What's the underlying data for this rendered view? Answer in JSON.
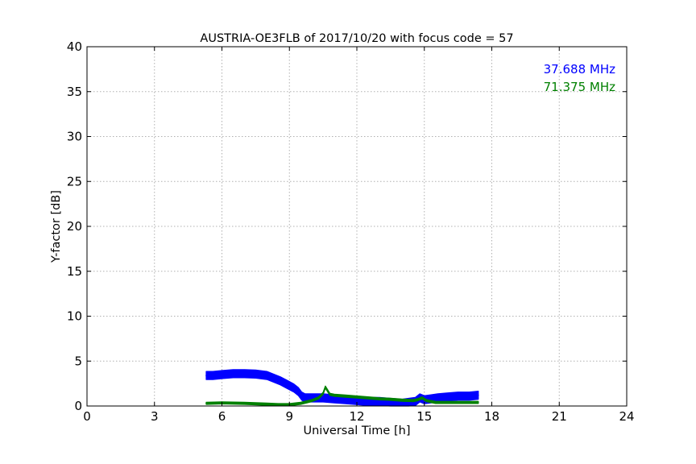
{
  "chart_data": {
    "type": "line",
    "title": "AUSTRIA-OE3FLB of 2017/10/20 with focus code = 57",
    "xlabel": "Universal Time [h]",
    "ylabel": "Y-factor [dB]",
    "xlim": [
      0,
      24
    ],
    "ylim": [
      0,
      40
    ],
    "xticks": [
      0,
      3,
      6,
      9,
      12,
      15,
      18,
      21,
      24
    ],
    "yticks": [
      0,
      5,
      10,
      15,
      20,
      25,
      30,
      35,
      40
    ],
    "grid": true,
    "legend_placement": "top-right",
    "series": [
      {
        "name": "37.688 MHz",
        "color": "#0000ff",
        "band": 0.45,
        "x": [
          5.3,
          5.6,
          6.0,
          6.5,
          7.0,
          7.5,
          8.0,
          8.3,
          8.6,
          8.9,
          9.2,
          9.4,
          9.55,
          9.7,
          10.0,
          10.5,
          11.0,
          11.5,
          12.0,
          12.5,
          13.0,
          13.5,
          14.0,
          14.3,
          14.6,
          14.8,
          15.0,
          15.3,
          15.6,
          16.0,
          16.5,
          17.0,
          17.4
        ],
        "y": [
          3.4,
          3.4,
          3.5,
          3.6,
          3.6,
          3.55,
          3.4,
          3.1,
          2.8,
          2.4,
          2.0,
          1.6,
          1.1,
          0.9,
          0.9,
          0.9,
          0.8,
          0.7,
          0.6,
          0.5,
          0.5,
          0.4,
          0.3,
          0.4,
          0.5,
          0.9,
          0.7,
          0.8,
          0.9,
          1.0,
          1.1,
          1.1,
          1.2
        ]
      },
      {
        "name": "71.375 MHz",
        "color": "#008000",
        "band": 0.12,
        "x": [
          5.3,
          6.0,
          7.0,
          8.0,
          8.5,
          9.0,
          9.5,
          10.0,
          10.3,
          10.5,
          10.6,
          10.8,
          11.0,
          11.5,
          12.0,
          12.5,
          13.0,
          13.5,
          14.0,
          14.5,
          14.7,
          14.9,
          15.1,
          15.5,
          16.0,
          16.5,
          17.0,
          17.4
        ],
        "y": [
          0.3,
          0.35,
          0.3,
          0.2,
          0.15,
          0.15,
          0.3,
          0.6,
          0.9,
          1.4,
          2.1,
          1.3,
          1.2,
          1.1,
          1.0,
          0.9,
          0.8,
          0.75,
          0.65,
          0.6,
          0.7,
          0.9,
          0.6,
          0.4,
          0.4,
          0.4,
          0.4,
          0.4
        ]
      }
    ]
  }
}
